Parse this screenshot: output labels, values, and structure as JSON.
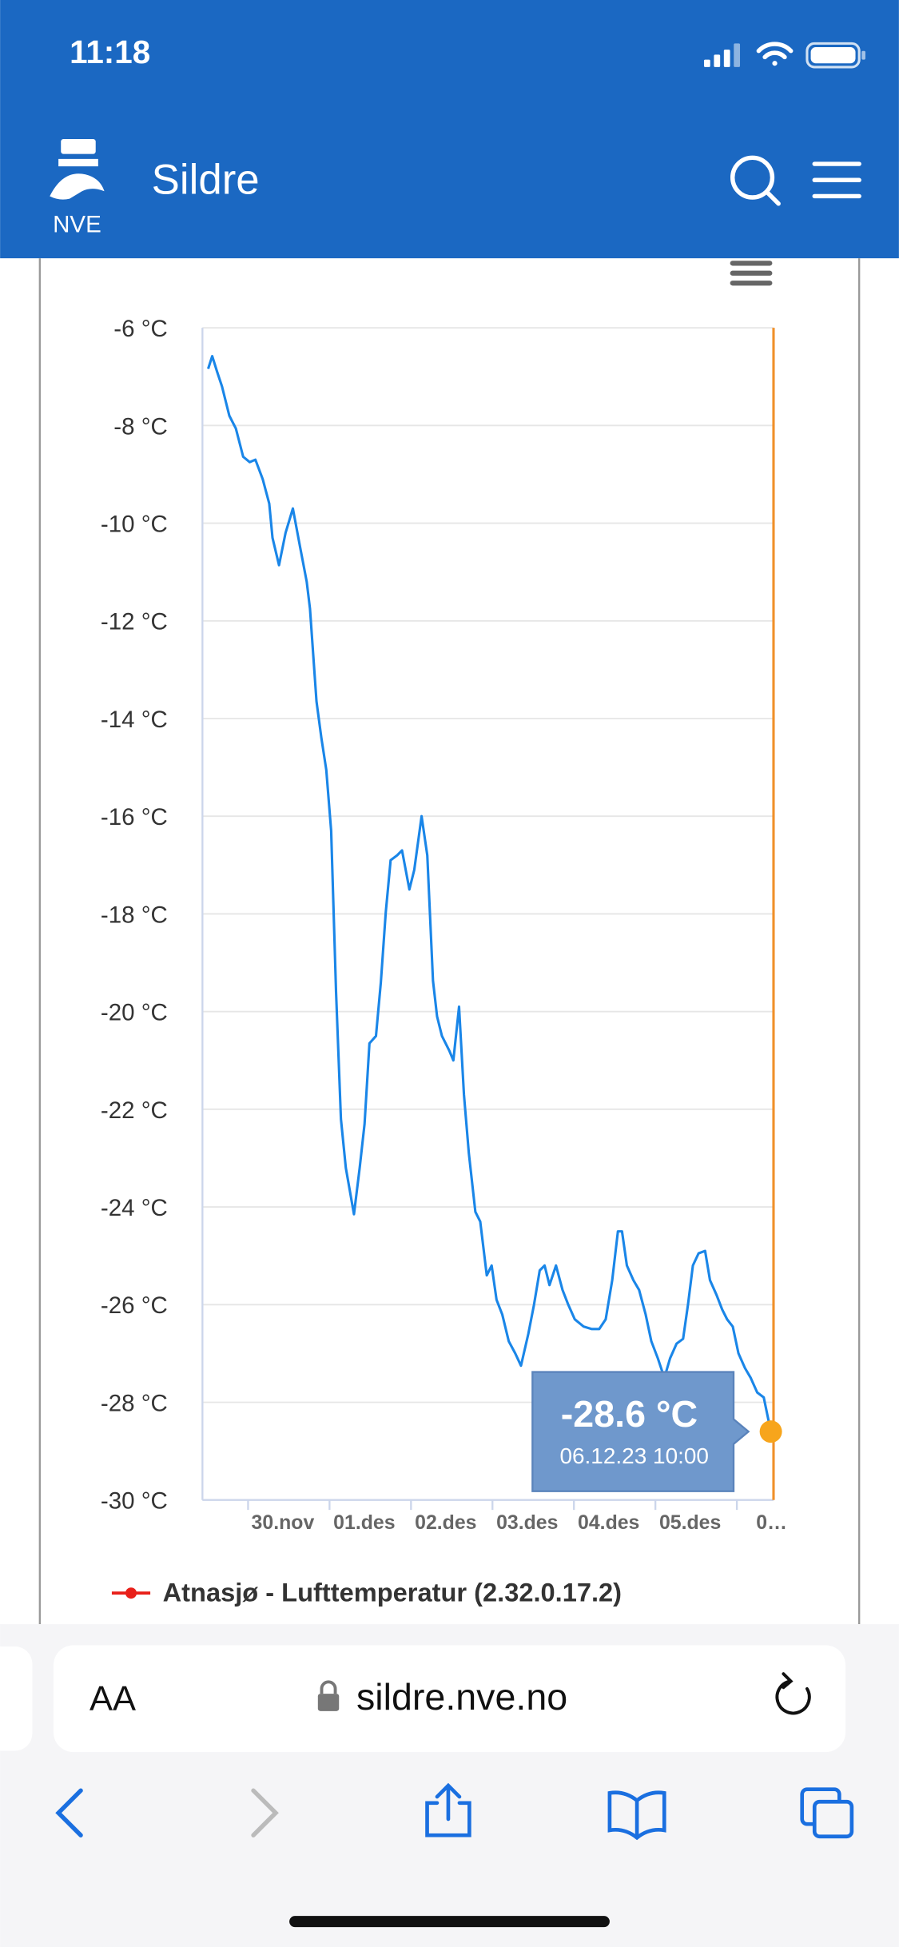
{
  "status_bar": {
    "time": "11:18"
  },
  "header": {
    "logo_text": "NVE",
    "title": "Sildre"
  },
  "chart_data": {
    "type": "line",
    "x": [
      -0.49,
      -0.44,
      -0.38,
      -0.32,
      -0.23,
      -0.15,
      -0.06,
      0.02,
      0.09,
      0.18,
      0.26,
      0.3,
      0.38,
      0.46,
      0.55,
      0.64,
      0.72,
      0.76,
      0.84,
      0.9,
      0.96,
      1.02,
      1.08,
      1.14,
      1.2,
      1.3,
      1.37,
      1.43,
      1.49,
      1.57,
      1.63,
      1.69,
      1.75,
      1.83,
      1.89,
      1.98,
      2.04,
      2.13,
      2.2,
      2.27,
      2.32,
      2.38,
      2.47,
      2.52,
      2.59,
      2.65,
      2.71,
      2.79,
      2.85,
      2.93,
      2.99,
      3.05,
      3.12,
      3.2,
      3.28,
      3.35,
      3.44,
      3.51,
      3.58,
      3.64,
      3.7,
      3.78,
      3.86,
      3.93,
      4.01,
      4.12,
      4.22,
      4.31,
      4.39,
      4.47,
      4.54,
      4.59,
      4.65,
      4.73,
      4.8,
      4.88,
      4.95,
      5.03,
      5.11,
      5.18,
      5.26,
      5.34,
      5.4,
      5.46,
      5.53,
      5.61,
      5.67,
      5.75,
      5.82,
      5.88,
      5.95,
      6.02,
      6.1,
      6.17,
      6.25,
      6.33,
      6.417
    ],
    "series": [
      {
        "name": "Atnasjø - Lufttemperatur (2.32.0.17.2)",
        "color": "#1a86e8",
        "legend_color": "#e8201a",
        "values": [
          -6.84,
          -6.58,
          -6.9,
          -7.2,
          -7.8,
          -8.06,
          -8.64,
          -8.75,
          -8.7,
          -9.1,
          -9.6,
          -10.3,
          -10.86,
          -10.2,
          -9.7,
          -10.5,
          -11.2,
          -11.75,
          -13.65,
          -14.4,
          -15.05,
          -16.3,
          -19.6,
          -22.2,
          -23.2,
          -24.15,
          -23.2,
          -22.3,
          -20.65,
          -20.5,
          -19.4,
          -17.97,
          -16.9,
          -16.8,
          -16.7,
          -17.5,
          -17.1,
          -16.0,
          -16.8,
          -19.37,
          -20.1,
          -20.5,
          -20.8,
          -21.0,
          -19.9,
          -21.7,
          -22.9,
          -24.1,
          -24.3,
          -25.4,
          -25.2,
          -25.9,
          -26.2,
          -26.75,
          -27.0,
          -27.25,
          -26.6,
          -26.0,
          -25.3,
          -25.2,
          -25.6,
          -25.2,
          -25.7,
          -26.0,
          -26.3,
          -26.45,
          -26.5,
          -26.5,
          -26.3,
          -25.5,
          -24.5,
          -24.5,
          -25.2,
          -25.5,
          -25.7,
          -26.2,
          -26.75,
          -27.1,
          -27.5,
          -27.1,
          -26.8,
          -26.7,
          -26.0,
          -25.2,
          -24.95,
          -24.9,
          -25.5,
          -25.8,
          -26.1,
          -26.3,
          -26.45,
          -27.0,
          -27.3,
          -27.5,
          -27.8,
          -27.9,
          -28.6
        ]
      }
    ],
    "xlim": [
      -0.56,
      6.45
    ],
    "xticks": [
      {
        "value": 0,
        "label": "30.nov"
      },
      {
        "value": 1,
        "label": "01.des"
      },
      {
        "value": 2,
        "label": "02.des"
      },
      {
        "value": 3,
        "label": "03.des"
      },
      {
        "value": 4,
        "label": "04.des"
      },
      {
        "value": 5,
        "label": "05.des"
      },
      {
        "value": 6,
        "label": "0…"
      }
    ],
    "ylim": [
      -30,
      -6
    ],
    "yticks": [
      {
        "value": -6,
        "label": "-6 °C"
      },
      {
        "value": -8,
        "label": "-8 °C"
      },
      {
        "value": -10,
        "label": "-10 °C"
      },
      {
        "value": -12,
        "label": "-12 °C"
      },
      {
        "value": -14,
        "label": "-14 °C"
      },
      {
        "value": -16,
        "label": "-16 °C"
      },
      {
        "value": -18,
        "label": "-18 °C"
      },
      {
        "value": -20,
        "label": "-20 °C"
      },
      {
        "value": -22,
        "label": "-22 °C"
      },
      {
        "value": -24,
        "label": "-24 °C"
      },
      {
        "value": -26,
        "label": "-26 °C"
      },
      {
        "value": -28,
        "label": "-28 °C"
      },
      {
        "value": -30,
        "label": "-30 °C"
      }
    ],
    "grid": true,
    "tooltip": {
      "value_label": "-28.6 °C",
      "date": "06.12.23 10:00"
    }
  },
  "browser": {
    "text_size_button": "AA",
    "url": "sildre.nve.no"
  }
}
